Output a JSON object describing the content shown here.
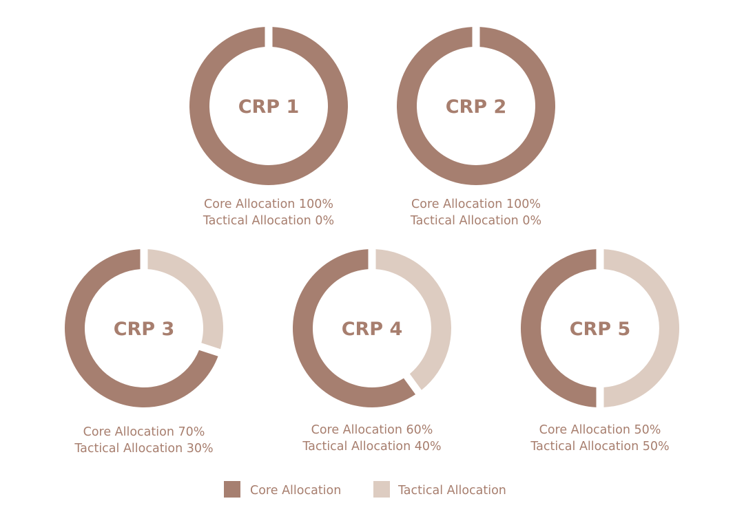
{
  "chart_data": {
    "type": "pie",
    "variant": "donut",
    "series_names": [
      "Core Allocation",
      "Tactical Allocation"
    ],
    "colors": {
      "core": "#a67f70",
      "tactical": "#ddccc1",
      "text": "#a77e6e"
    },
    "charts": [
      {
        "label": "CRP 1",
        "core": 100,
        "tactical": 0,
        "caption_core": "Core Allocation 100%",
        "caption_tactical": "Tactical Allocation 0%"
      },
      {
        "label": "CRP 2",
        "core": 100,
        "tactical": 0,
        "caption_core": "Core Allocation 100%",
        "caption_tactical": "Tactical Allocation 0%"
      },
      {
        "label": "CRP 3",
        "core": 70,
        "tactical": 30,
        "caption_core": "Core Allocation 70%",
        "caption_tactical": "Tactical Allocation 30%"
      },
      {
        "label": "CRP 4",
        "core": 60,
        "tactical": 40,
        "caption_core": "Core Allocation 60%",
        "caption_tactical": "Tactical Allocation 40%"
      },
      {
        "label": "CRP 5",
        "core": 50,
        "tactical": 50,
        "caption_core": "Core Allocation 50%",
        "caption_tactical": "Tactical Allocation 50%"
      }
    ],
    "legend": [
      {
        "label": "Core Allocation",
        "color": "#a67f70"
      },
      {
        "label": "Tactical Allocation",
        "color": "#ddccc1"
      }
    ],
    "legend_position": "bottom-center"
  }
}
